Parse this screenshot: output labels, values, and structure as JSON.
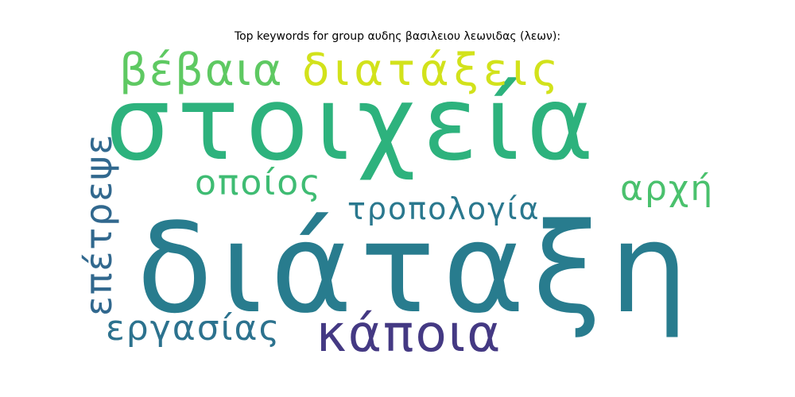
{
  "chart_data": {
    "type": "wordcloud",
    "title": "Top keywords for group αυδης βασιλειου λεωνιδας (λεων):",
    "words": [
      {
        "text": "στοιχεία",
        "color": "#2db27d"
      },
      {
        "text": "διάταξη",
        "color": "#287c8e"
      },
      {
        "text": "κάποια",
        "color": "#443983"
      },
      {
        "text": "διατάξεις",
        "color": "#d2e21b"
      },
      {
        "text": "βέβαια",
        "color": "#5ec962"
      },
      {
        "text": "οποίος",
        "color": "#3fbc73"
      },
      {
        "text": "τροπολογία",
        "color": "#2a788e"
      },
      {
        "text": "αρχή",
        "color": "#4ac16d"
      },
      {
        "text": "επέτρεψε",
        "color": "#31688e"
      },
      {
        "text": "εργασίας",
        "color": "#2c728e"
      }
    ]
  }
}
